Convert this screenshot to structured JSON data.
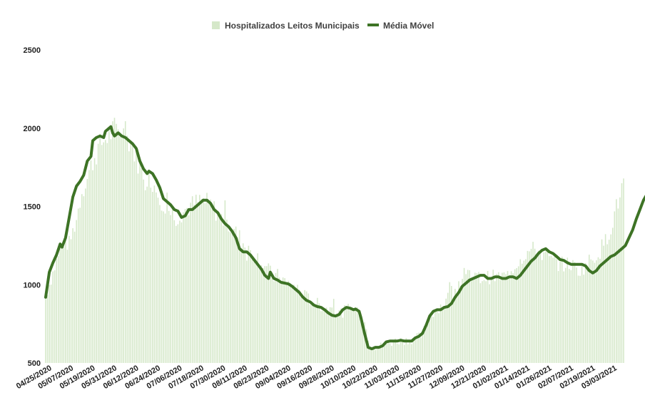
{
  "chart_data": {
    "type": "bar+line",
    "title": "",
    "xlabel": "",
    "ylabel": "",
    "ylim": [
      500,
      2500
    ],
    "yticks": [
      500,
      1000,
      1500,
      2000,
      2500
    ],
    "grid": false,
    "legend_position": "top-center",
    "colors": {
      "bars": "#d5e8c9",
      "line": "#3d7325"
    },
    "x_tick_labels": [
      "04/25/2020",
      "05/07/2020",
      "05/19/2020",
      "05/31/2020",
      "06/12/2020",
      "06/24/2020",
      "07/06/2020",
      "07/18/2020",
      "07/30/2020",
      "08/11/2020",
      "08/23/2020",
      "09/04/2020",
      "09/16/2020",
      "09/28/2020",
      "10/10/2020",
      "10/22/2020",
      "11/03/2020",
      "11/15/2020",
      "11/27/2020",
      "12/09/2020",
      "12/21/2020",
      "01/02/2021",
      "01/14/2021",
      "01/26/2021",
      "02/07/2021",
      "02/19/2021",
      "03/03/2021"
    ],
    "start_date": "2020-04-25",
    "end_date": "2021-03-10",
    "series": [
      {
        "name": "Hospitalizados Leitos Municipais",
        "type": "bar",
        "keyframes": [
          [
            "2020-04-25",
            930
          ],
          [
            "2020-05-01",
            1150
          ],
          [
            "2020-05-05",
            1280
          ],
          [
            "2020-05-08",
            1260
          ],
          [
            "2020-05-12",
            1420
          ],
          [
            "2020-05-15",
            1600
          ],
          [
            "2020-05-18",
            1680
          ],
          [
            "2020-05-21",
            1790
          ],
          [
            "2020-05-24",
            1870
          ],
          [
            "2020-05-27",
            1920
          ],
          [
            "2020-05-30",
            1960
          ],
          [
            "2020-06-02",
            1990
          ],
          [
            "2020-06-05",
            1970
          ],
          [
            "2020-06-08",
            1950
          ],
          [
            "2020-06-11",
            1910
          ],
          [
            "2020-06-14",
            1820
          ],
          [
            "2020-06-17",
            1720
          ],
          [
            "2020-06-20",
            1700
          ],
          [
            "2020-06-23",
            1660
          ],
          [
            "2020-06-27",
            1560
          ],
          [
            "2020-07-01",
            1490
          ],
          [
            "2020-07-06",
            1430
          ],
          [
            "2020-07-10",
            1470
          ],
          [
            "2020-07-15",
            1510
          ],
          [
            "2020-07-20",
            1540
          ],
          [
            "2020-07-25",
            1510
          ],
          [
            "2020-07-30",
            1440
          ],
          [
            "2020-08-04",
            1380
          ],
          [
            "2020-08-09",
            1320
          ],
          [
            "2020-08-14",
            1230
          ],
          [
            "2020-08-19",
            1190
          ],
          [
            "2020-08-24",
            1120
          ],
          [
            "2020-08-29",
            1050
          ],
          [
            "2020-09-01",
            1060
          ],
          [
            "2020-09-05",
            1010
          ],
          [
            "2020-09-10",
            990
          ],
          [
            "2020-09-15",
            930
          ],
          [
            "2020-09-20",
            890
          ],
          [
            "2020-09-25",
            860
          ],
          [
            "2020-09-30",
            840
          ],
          [
            "2020-10-05",
            820
          ],
          [
            "2020-10-10",
            850
          ],
          [
            "2020-10-15",
            840
          ],
          [
            "2020-10-18",
            760
          ],
          [
            "2020-10-21",
            620
          ],
          [
            "2020-10-25",
            600
          ],
          [
            "2020-10-30",
            620
          ],
          [
            "2020-11-04",
            640
          ],
          [
            "2020-11-09",
            645
          ],
          [
            "2020-11-14",
            650
          ],
          [
            "2020-11-19",
            680
          ],
          [
            "2020-11-22",
            780
          ],
          [
            "2020-11-26",
            840
          ],
          [
            "2020-12-01",
            880
          ],
          [
            "2020-12-06",
            980
          ],
          [
            "2020-12-11",
            1040
          ],
          [
            "2020-12-16",
            1060
          ],
          [
            "2020-12-21",
            1040
          ],
          [
            "2020-12-26",
            1050
          ],
          [
            "2021-01-01",
            1050
          ],
          [
            "2021-01-05",
            1060
          ],
          [
            "2021-01-10",
            1140
          ],
          [
            "2021-01-15",
            1200
          ],
          [
            "2021-01-20",
            1230
          ],
          [
            "2021-01-25",
            1190
          ],
          [
            "2021-01-30",
            1150
          ],
          [
            "2021-02-04",
            1130
          ],
          [
            "2021-02-09",
            1130
          ],
          [
            "2021-02-14",
            1090
          ],
          [
            "2021-02-19",
            1150
          ],
          [
            "2021-02-24",
            1200
          ],
          [
            "2021-03-01",
            1300
          ],
          [
            "2021-03-05",
            1450
          ],
          [
            "2021-03-10",
            1650
          ]
        ]
      },
      {
        "name": "Média Móvel",
        "type": "line",
        "values": [
          [
            0,
            920
          ],
          [
            2,
            1080
          ],
          [
            4,
            1140
          ],
          [
            6,
            1190
          ],
          [
            8,
            1260
          ],
          [
            9,
            1240
          ],
          [
            11,
            1300
          ],
          [
            13,
            1430
          ],
          [
            15,
            1560
          ],
          [
            17,
            1630
          ],
          [
            19,
            1660
          ],
          [
            21,
            1700
          ],
          [
            23,
            1790
          ],
          [
            25,
            1820
          ],
          [
            26,
            1920
          ],
          [
            28,
            1940
          ],
          [
            30,
            1950
          ],
          [
            32,
            1940
          ],
          [
            33,
            1980
          ],
          [
            35,
            2000
          ],
          [
            36,
            2010
          ],
          [
            37,
            1970
          ],
          [
            38,
            1950
          ],
          [
            40,
            1970
          ],
          [
            42,
            1950
          ],
          [
            44,
            1940
          ],
          [
            46,
            1920
          ],
          [
            48,
            1900
          ],
          [
            50,
            1870
          ],
          [
            52,
            1790
          ],
          [
            54,
            1740
          ],
          [
            56,
            1710
          ],
          [
            57,
            1725
          ],
          [
            59,
            1710
          ],
          [
            61,
            1670
          ],
          [
            63,
            1620
          ],
          [
            65,
            1550
          ],
          [
            67,
            1530
          ],
          [
            69,
            1510
          ],
          [
            71,
            1480
          ],
          [
            73,
            1470
          ],
          [
            75,
            1430
          ],
          [
            77,
            1440
          ],
          [
            79,
            1480
          ],
          [
            81,
            1480
          ],
          [
            83,
            1500
          ],
          [
            85,
            1520
          ],
          [
            87,
            1540
          ],
          [
            89,
            1540
          ],
          [
            91,
            1520
          ],
          [
            93,
            1480
          ],
          [
            95,
            1460
          ],
          [
            97,
            1420
          ],
          [
            99,
            1390
          ],
          [
            101,
            1370
          ],
          [
            103,
            1340
          ],
          [
            105,
            1300
          ],
          [
            107,
            1230
          ],
          [
            109,
            1210
          ],
          [
            111,
            1210
          ],
          [
            113,
            1190
          ],
          [
            115,
            1160
          ],
          [
            117,
            1130
          ],
          [
            119,
            1100
          ],
          [
            121,
            1060
          ],
          [
            123,
            1040
          ],
          [
            124,
            1080
          ],
          [
            126,
            1040
          ],
          [
            128,
            1030
          ],
          [
            130,
            1015
          ],
          [
            132,
            1010
          ],
          [
            134,
            1005
          ],
          [
            136,
            990
          ],
          [
            138,
            970
          ],
          [
            140,
            950
          ],
          [
            142,
            920
          ],
          [
            144,
            900
          ],
          [
            146,
            890
          ],
          [
            148,
            870
          ],
          [
            150,
            860
          ],
          [
            152,
            855
          ],
          [
            154,
            840
          ],
          [
            156,
            820
          ],
          [
            158,
            805
          ],
          [
            160,
            800
          ],
          [
            162,
            810
          ],
          [
            164,
            840
          ],
          [
            166,
            855
          ],
          [
            168,
            850
          ],
          [
            170,
            840
          ],
          [
            171,
            845
          ],
          [
            173,
            830
          ],
          [
            174,
            790
          ],
          [
            176,
            690
          ],
          [
            178,
            600
          ],
          [
            180,
            590
          ],
          [
            182,
            600
          ],
          [
            184,
            600
          ],
          [
            186,
            610
          ],
          [
            188,
            635
          ],
          [
            190,
            640
          ],
          [
            192,
            640
          ],
          [
            194,
            640
          ],
          [
            196,
            645
          ],
          [
            198,
            640
          ],
          [
            200,
            640
          ],
          [
            202,
            640
          ],
          [
            204,
            660
          ],
          [
            206,
            670
          ],
          [
            208,
            690
          ],
          [
            210,
            740
          ],
          [
            212,
            800
          ],
          [
            214,
            830
          ],
          [
            216,
            840
          ],
          [
            218,
            840
          ],
          [
            220,
            855
          ],
          [
            222,
            860
          ],
          [
            224,
            880
          ],
          [
            226,
            920
          ],
          [
            228,
            950
          ],
          [
            230,
            990
          ],
          [
            232,
            1010
          ],
          [
            234,
            1030
          ],
          [
            236,
            1040
          ],
          [
            238,
            1050
          ],
          [
            240,
            1060
          ],
          [
            242,
            1060
          ],
          [
            244,
            1040
          ],
          [
            246,
            1040
          ],
          [
            248,
            1050
          ],
          [
            250,
            1050
          ],
          [
            252,
            1040
          ],
          [
            254,
            1040
          ],
          [
            256,
            1050
          ],
          [
            258,
            1050
          ],
          [
            260,
            1040
          ],
          [
            262,
            1060
          ],
          [
            264,
            1090
          ],
          [
            266,
            1120
          ],
          [
            268,
            1150
          ],
          [
            270,
            1170
          ],
          [
            272,
            1200
          ],
          [
            274,
            1220
          ],
          [
            276,
            1230
          ],
          [
            278,
            1210
          ],
          [
            280,
            1200
          ],
          [
            282,
            1180
          ],
          [
            284,
            1160
          ],
          [
            286,
            1155
          ],
          [
            288,
            1140
          ],
          [
            290,
            1130
          ],
          [
            292,
            1130
          ],
          [
            294,
            1130
          ],
          [
            296,
            1130
          ],
          [
            298,
            1120
          ],
          [
            300,
            1090
          ],
          [
            302,
            1075
          ],
          [
            304,
            1090
          ],
          [
            306,
            1120
          ],
          [
            308,
            1140
          ],
          [
            310,
            1160
          ],
          [
            312,
            1180
          ],
          [
            314,
            1190
          ],
          [
            316,
            1210
          ],
          [
            318,
            1230
          ],
          [
            320,
            1250
          ],
          [
            322,
            1300
          ],
          [
            324,
            1350
          ],
          [
            326,
            1420
          ],
          [
            328,
            1480
          ],
          [
            330,
            1540
          ],
          [
            332,
            1580
          ],
          [
            334,
            1620
          ]
        ]
      }
    ]
  },
  "legend": {
    "bars_label": "Hospitalizados Leitos Municipais",
    "line_label": "Média Móvel"
  }
}
